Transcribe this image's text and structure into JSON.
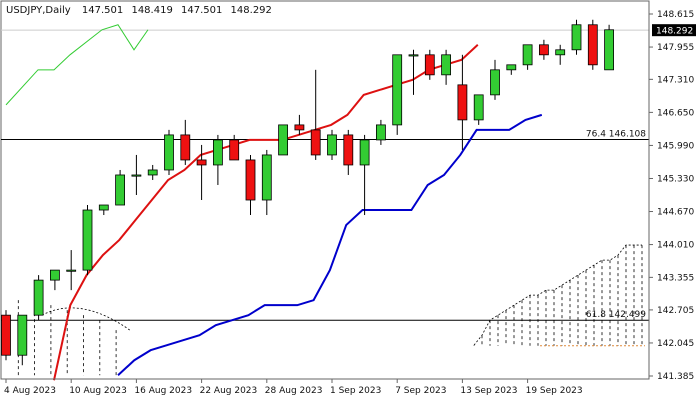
{
  "chart_data": {
    "type": "candlestick",
    "symbol_label": "USDJPY,Daily",
    "ohlc_values": [
      "147.501",
      "148.419",
      "147.501",
      "148.292"
    ],
    "current_price": "148.292",
    "ylim": [
      141.385,
      148.615
    ],
    "y_ticks": [
      "148.615",
      "147.955",
      "147.310",
      "146.650",
      "145.990",
      "145.330",
      "144.670",
      "144.010",
      "143.355",
      "142.705",
      "142.045",
      "141.385"
    ],
    "x_ticks": [
      {
        "label": "4 Aug 2023",
        "index": 0
      },
      {
        "label": "10 Aug 2023",
        "index": 4
      },
      {
        "label": "16 Aug 2023",
        "index": 8
      },
      {
        "label": "22 Aug 2023",
        "index": 12
      },
      {
        "label": "28 Aug 2023",
        "index": 16
      },
      {
        "label": "1 Sep 2023",
        "index": 20
      },
      {
        "label": "7 Sep 2023",
        "index": 24
      },
      {
        "label": "13 Sep 2023",
        "index": 28
      },
      {
        "label": "19 Sep 2023",
        "index": 32
      }
    ],
    "candles": [
      {
        "o": 142.6,
        "h": 142.7,
        "l": 141.7,
        "c": 141.8
      },
      {
        "o": 141.8,
        "h": 142.6,
        "l": 141.6,
        "c": 142.6
      },
      {
        "o": 142.6,
        "h": 143.4,
        "l": 142.5,
        "c": 143.3
      },
      {
        "o": 143.3,
        "h": 143.5,
        "l": 143.1,
        "c": 143.5
      },
      {
        "o": 143.5,
        "h": 143.9,
        "l": 143.1,
        "c": 143.5
      },
      {
        "o": 143.5,
        "h": 144.8,
        "l": 143.4,
        "c": 144.7
      },
      {
        "o": 144.7,
        "h": 144.8,
        "l": 144.6,
        "c": 144.8
      },
      {
        "o": 144.8,
        "h": 145.5,
        "l": 144.8,
        "c": 145.4
      },
      {
        "o": 145.4,
        "h": 145.8,
        "l": 145.0,
        "c": 145.4
      },
      {
        "o": 145.4,
        "h": 145.6,
        "l": 145.3,
        "c": 145.5
      },
      {
        "o": 145.5,
        "h": 146.3,
        "l": 145.4,
        "c": 146.2
      },
      {
        "o": 146.2,
        "h": 146.5,
        "l": 145.6,
        "c": 145.7
      },
      {
        "o": 145.7,
        "h": 146.0,
        "l": 144.9,
        "c": 145.6
      },
      {
        "o": 145.6,
        "h": 146.2,
        "l": 145.2,
        "c": 146.1
      },
      {
        "o": 146.1,
        "h": 146.2,
        "l": 145.7,
        "c": 145.7
      },
      {
        "o": 145.7,
        "h": 145.8,
        "l": 144.6,
        "c": 144.9
      },
      {
        "o": 144.9,
        "h": 145.9,
        "l": 144.6,
        "c": 145.8
      },
      {
        "o": 145.8,
        "h": 146.4,
        "l": 145.8,
        "c": 146.4
      },
      {
        "o": 146.4,
        "h": 146.6,
        "l": 146.2,
        "c": 146.3
      },
      {
        "o": 146.3,
        "h": 147.5,
        "l": 145.7,
        "c": 145.8
      },
      {
        "o": 145.8,
        "h": 146.3,
        "l": 145.7,
        "c": 146.2
      },
      {
        "o": 146.2,
        "h": 146.3,
        "l": 145.4,
        "c": 145.6
      },
      {
        "o": 145.6,
        "h": 146.2,
        "l": 144.6,
        "c": 146.1
      },
      {
        "o": 146.1,
        "h": 146.5,
        "l": 146.0,
        "c": 146.4
      },
      {
        "o": 146.4,
        "h": 147.8,
        "l": 146.2,
        "c": 147.8
      },
      {
        "o": 147.8,
        "h": 147.9,
        "l": 147.0,
        "c": 147.8
      },
      {
        "o": 147.8,
        "h": 147.9,
        "l": 147.3,
        "c": 147.4
      },
      {
        "o": 147.4,
        "h": 147.9,
        "l": 147.2,
        "c": 147.8
      },
      {
        "o": 147.2,
        "h": 147.8,
        "l": 145.9,
        "c": 146.5
      },
      {
        "o": 146.5,
        "h": 147.0,
        "l": 146.4,
        "c": 147.0
      },
      {
        "o": 147.0,
        "h": 147.7,
        "l": 146.9,
        "c": 147.5
      },
      {
        "o": 147.5,
        "h": 147.6,
        "l": 147.4,
        "c": 147.6
      },
      {
        "o": 147.6,
        "h": 148.0,
        "l": 147.5,
        "c": 148.0
      },
      {
        "o": 148.0,
        "h": 148.1,
        "l": 147.7,
        "c": 147.8
      },
      {
        "o": 147.8,
        "h": 148.0,
        "l": 147.6,
        "c": 147.9
      },
      {
        "o": 147.9,
        "h": 148.5,
        "l": 147.8,
        "c": 148.4
      },
      {
        "o": 148.4,
        "h": 148.5,
        "l": 147.5,
        "c": 147.6
      },
      {
        "o": 147.5,
        "h": 148.4,
        "l": 147.5,
        "c": 148.3
      }
    ],
    "lines": [
      {
        "color": "#33cc33",
        "values": [
          146.8,
          147.5,
          147.5,
          147.8,
          148.3,
          148.4,
          147.9,
          148.3
        ]
      },
      {
        "color": "#dd1111",
        "values": [
          141.3,
          142.8,
          143.4,
          143.8,
          144.1,
          144.5,
          144.9,
          145.3,
          145.5,
          145.8,
          145.9,
          146.0,
          146.1,
          146.1,
          146.1,
          146.2,
          146.3,
          146.4,
          146.6,
          147.0,
          147.1,
          147.2,
          147.3,
          147.5,
          147.6,
          147.7,
          148.0
        ]
      },
      {
        "color": "#0000cc",
        "values": [
          141.4,
          141.7,
          141.9,
          142.0,
          142.1,
          142.2,
          142.4,
          142.5,
          142.6,
          142.8,
          142.8,
          142.8,
          142.9,
          143.5,
          144.4,
          144.7,
          144.7,
          144.7,
          144.7,
          145.2,
          145.4,
          145.8,
          146.3,
          146.3,
          146.3,
          146.5,
          146.6
        ]
      }
    ],
    "horizontal_levels": [
      {
        "label": "76.4 146.108",
        "value": 146.108
      },
      {
        "label": "61.8 142.499",
        "value": 142.499
      }
    ]
  }
}
